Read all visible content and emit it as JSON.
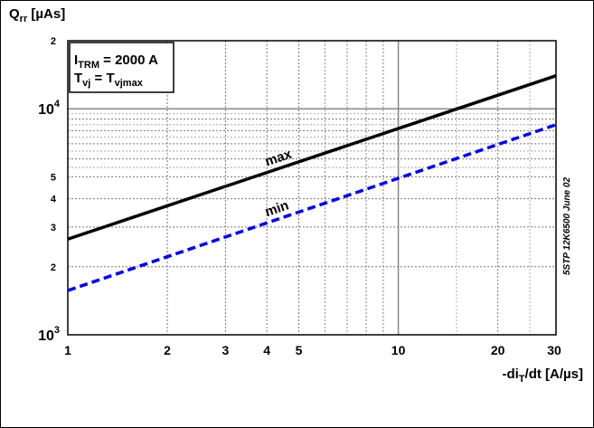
{
  "chart_data": {
    "type": "line",
    "x_scale": "log",
    "y_scale": "log",
    "xlim": [
      1,
      30
    ],
    "ylim": [
      1000,
      20000
    ],
    "grid": true,
    "ylabel": {
      "main": "Q",
      "sub": "rr",
      "unit": " [µAs]"
    },
    "xlabel": {
      "pre": "-di",
      "sub": "T",
      "post": "/dt [A/µs]"
    },
    "x_ticks": [
      {
        "value": 1,
        "label": "1"
      },
      {
        "value": 2,
        "label": "2"
      },
      {
        "value": 3,
        "label": "3"
      },
      {
        "value": 4,
        "label": "4"
      },
      {
        "value": 5,
        "label": "5"
      },
      {
        "value": 10,
        "label": "10"
      },
      {
        "value": 20,
        "label": "20"
      },
      {
        "value": 30,
        "label": "30"
      }
    ],
    "y_ticks": [
      {
        "value": 1000,
        "base": "10",
        "exp": "3"
      },
      {
        "value": 2000,
        "label": "2"
      },
      {
        "value": 3000,
        "label": "3"
      },
      {
        "value": 4000,
        "label": "4"
      },
      {
        "value": 5000,
        "label": "5"
      },
      {
        "value": 10000,
        "base": "10",
        "exp": "4"
      },
      {
        "value": 20000,
        "label": "2"
      }
    ],
    "series": [
      {
        "name": "max",
        "color": "#000000",
        "dash": "solid",
        "x": [
          1,
          30
        ],
        "y": [
          2650,
          14000
        ],
        "label_at": 4
      },
      {
        "name": "min",
        "color": "#0000ee",
        "dash": "dashed",
        "x": [
          1,
          30
        ],
        "y": [
          1570,
          8500
        ],
        "label_at": 4
      }
    ],
    "annotation": {
      "line1": {
        "main": "I",
        "sub": "TRM",
        "rest": " = 2000 A"
      },
      "line2": {
        "main": "T",
        "sub": "vj",
        "mid": " = T",
        "sub2": "vjmax"
      }
    },
    "side_note": "5STP 12K6500 June 02"
  }
}
